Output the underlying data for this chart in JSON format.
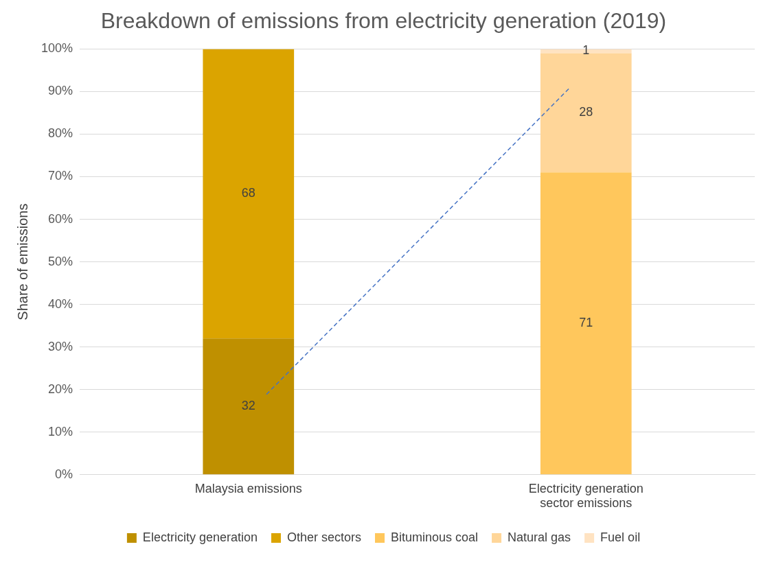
{
  "chart_data": {
    "type": "bar",
    "title": "Breakdown of emissions from electricity generation (2019)",
    "ylabel": "Share of emissions",
    "categories": [
      "Malaysia emissions",
      "Electricity generation sector emissions"
    ],
    "stacked": true,
    "series": [
      {
        "name": "Electricity generation",
        "color": "#bf9000",
        "values": [
          32,
          null
        ]
      },
      {
        "name": "Other sectors",
        "color": "#dba400",
        "values": [
          68,
          null
        ]
      },
      {
        "name": "Bituminous coal",
        "color": "#ffc75c",
        "values": [
          null,
          71
        ]
      },
      {
        "name": "Natural gas",
        "color": "#ffd699",
        "values": [
          null,
          28
        ]
      },
      {
        "name": "Fuel oil",
        "color": "#ffe3c2",
        "values": [
          null,
          1
        ]
      }
    ],
    "ylim": [
      0,
      100
    ],
    "yticks": [
      {
        "value": 0,
        "label": "0%"
      },
      {
        "value": 10,
        "label": "10%"
      },
      {
        "value": 20,
        "label": "20%"
      },
      {
        "value": 30,
        "label": "30%"
      },
      {
        "value": 40,
        "label": "40%"
      },
      {
        "value": 50,
        "label": "50%"
      },
      {
        "value": 60,
        "label": "60%"
      },
      {
        "value": 70,
        "label": "70%"
      },
      {
        "value": 80,
        "label": "80%"
      },
      {
        "value": 90,
        "label": "90%"
      },
      {
        "value": 100,
        "label": "100%"
      }
    ],
    "grid": "y",
    "legend": "bottom",
    "data_labels": true
  }
}
